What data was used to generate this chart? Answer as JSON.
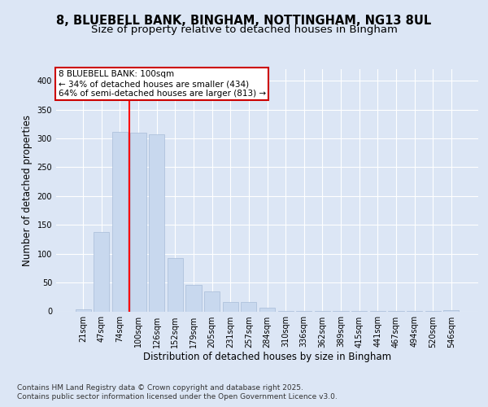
{
  "title_line1": "8, BLUEBELL BANK, BINGHAM, NOTTINGHAM, NG13 8UL",
  "title_line2": "Size of property relative to detached houses in Bingham",
  "xlabel": "Distribution of detached houses by size in Bingham",
  "ylabel": "Number of detached properties",
  "categories": [
    "21sqm",
    "47sqm",
    "74sqm",
    "100sqm",
    "126sqm",
    "152sqm",
    "179sqm",
    "205sqm",
    "231sqm",
    "257sqm",
    "284sqm",
    "310sqm",
    "336sqm",
    "362sqm",
    "389sqm",
    "415sqm",
    "441sqm",
    "467sqm",
    "494sqm",
    "520sqm",
    "546sqm"
  ],
  "values": [
    3,
    137,
    311,
    310,
    307,
    92,
    46,
    34,
    16,
    16,
    7,
    1,
    1,
    1,
    1,
    1,
    1,
    1,
    1,
    1,
    2
  ],
  "bar_color": "#c8d8ee",
  "bar_edge_color": "#a8bcd8",
  "red_line_index": 3,
  "annotation_text": "8 BLUEBELL BANK: 100sqm\n← 34% of detached houses are smaller (434)\n64% of semi-detached houses are larger (813) →",
  "annotation_box_color": "#ffffff",
  "annotation_box_edge": "#cc0000",
  "ylim": [
    0,
    420
  ],
  "yticks": [
    0,
    50,
    100,
    150,
    200,
    250,
    300,
    350,
    400
  ],
  "fig_background": "#dce6f5",
  "plot_background": "#dce6f5",
  "footer_line1": "Contains HM Land Registry data © Crown copyright and database right 2025.",
  "footer_line2": "Contains public sector information licensed under the Open Government Licence v3.0.",
  "title_fontsize": 10.5,
  "subtitle_fontsize": 9.5,
  "axis_label_fontsize": 8.5,
  "tick_fontsize": 7,
  "footer_fontsize": 6.5,
  "annotation_fontsize": 7.5
}
